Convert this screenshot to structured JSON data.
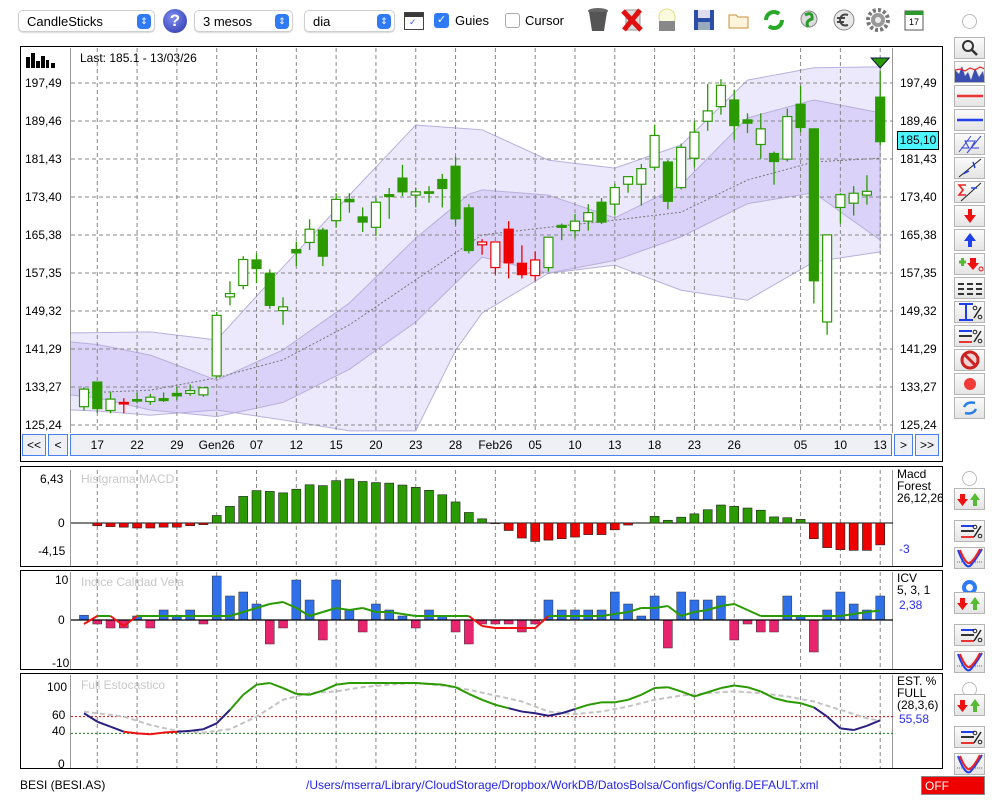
{
  "toolbar": {
    "chart_type": "CandleSticks",
    "period": "3 mesos",
    "interval": "dia",
    "guides_label": "Guies",
    "guides_checked": true,
    "cursor_label": "Cursor",
    "cursor_checked": false,
    "help": "?",
    "calendar_day": "17"
  },
  "main": {
    "last_label": "Last: 185.1 - 13/03/26",
    "last_price": "185,10",
    "nav": {
      "first": "<<",
      "prev": "<",
      "next": ">",
      "last": ">>"
    }
  },
  "panels": {
    "macd": {
      "title": "Histgrama MACD",
      "legend": [
        "Macd",
        "Forest",
        "26,12,26"
      ],
      "value": "-3"
    },
    "icv": {
      "title": "Indice Calidad Vela",
      "legend": [
        "ICV",
        "5, 3, 1"
      ],
      "value": "2,38"
    },
    "stoch": {
      "title": "Full Estocastico",
      "legend": [
        "EST. %",
        "FULL",
        "(28,3,6)"
      ],
      "value": "55,58"
    }
  },
  "status": {
    "symbol": "BESI (BESI.AS)",
    "path": "/Users/mserra/Library/CloudStorage/Dropbox/WorkDB/DatosBolsa/Configs/Config.DEFAULT.xml",
    "toggle": "OFF"
  },
  "colors": {
    "up": "#2a9a00",
    "red": "#ee0000",
    "band": "#c9bff5",
    "macd_pos": "#2a9a00",
    "macd_neg": "#ee0000",
    "icv_pos": "#2f6fe8",
    "icv_neg": "#e8246e",
    "last_bg": "#4df5ff",
    "path": "#2424e8"
  },
  "chart_data": [
    {
      "type": "candlestick",
      "title": "CandleSticks",
      "ylim": [
        125.24,
        197.49
      ],
      "yticks": [
        {
          "v": 197.49,
          "l": "197,49"
        },
        {
          "v": 189.46,
          "l": "189,46"
        },
        {
          "v": 181.43,
          "l": "181,43"
        },
        {
          "v": 173.4,
          "l": "173,40"
        },
        {
          "v": 165.38,
          "l": "165,38"
        },
        {
          "v": 157.35,
          "l": "157,35"
        },
        {
          "v": 149.32,
          "l": "149,32"
        },
        {
          "v": 141.29,
          "l": "141,29"
        },
        {
          "v": 133.27,
          "l": "133,27"
        },
        {
          "v": 125.24,
          "l": "125,24"
        }
      ],
      "xticks": [
        {
          "i": 1,
          "l": "17"
        },
        {
          "i": 4,
          "l": "22"
        },
        {
          "i": 7,
          "l": "29"
        },
        {
          "i": 10,
          "l": "Gen26"
        },
        {
          "i": 13,
          "l": "07"
        },
        {
          "i": 16,
          "l": "12"
        },
        {
          "i": 19,
          "l": "15"
        },
        {
          "i": 22,
          "l": "20"
        },
        {
          "i": 25,
          "l": "23"
        },
        {
          "i": 28,
          "l": "28"
        },
        {
          "i": 31,
          "l": "Feb26"
        },
        {
          "i": 34,
          "l": "05"
        },
        {
          "i": 37,
          "l": "10"
        },
        {
          "i": 40,
          "l": "13"
        },
        {
          "i": 43,
          "l": "18"
        },
        {
          "i": 46,
          "l": "23"
        },
        {
          "i": 49,
          "l": "26"
        },
        {
          "i": 54,
          "l": "05"
        },
        {
          "i": 57,
          "l": "10"
        },
        {
          "i": 60,
          "l": "13"
        }
      ],
      "ohlc": [
        [
          129.1,
          133.2,
          128.3,
          132.8
        ],
        [
          134.3,
          134.3,
          127.8,
          128.7
        ],
        [
          128.3,
          132.3,
          127.7,
          130.7
        ],
        [
          130.0,
          130.9,
          127.7,
          130.0
        ],
        [
          130.6,
          132.1,
          129.8,
          130.6
        ],
        [
          130.2,
          131.8,
          129.5,
          131.1
        ],
        [
          130.8,
          132.1,
          130.1,
          130.4
        ],
        [
          131.9,
          133.3,
          130.5,
          131.4
        ],
        [
          131.9,
          133.8,
          131.4,
          132.5
        ],
        [
          131.6,
          133.1,
          131.2,
          133.1
        ],
        [
          135.6,
          149.1,
          135.2,
          148.4
        ],
        [
          152.3,
          155.6,
          150.5,
          153.0
        ],
        [
          154.7,
          160.9,
          153.9,
          160.2
        ],
        [
          160.1,
          161.5,
          155.2,
          158.3
        ],
        [
          157.3,
          158.1,
          149.8,
          150.5
        ],
        [
          149.4,
          152.2,
          146.4,
          150.2
        ],
        [
          162.3,
          164.0,
          158.8,
          161.6
        ],
        [
          163.8,
          168.7,
          162.2,
          166.6
        ],
        [
          166.4,
          166.9,
          158.8,
          160.9
        ],
        [
          168.4,
          174.2,
          166.9,
          172.9
        ],
        [
          172.9,
          174.2,
          170.1,
          172.4
        ],
        [
          169.2,
          171.2,
          166.0,
          168.1
        ],
        [
          167.0,
          173.3,
          165.2,
          172.3
        ],
        [
          173.9,
          175.3,
          168.8,
          173.5
        ],
        [
          177.4,
          180.2,
          173.6,
          174.5
        ],
        [
          173.8,
          175.4,
          171.2,
          174.5
        ],
        [
          174.5,
          175.7,
          172.2,
          174.5
        ],
        [
          177.1,
          178.3,
          171.2,
          175.2
        ],
        [
          179.9,
          181.9,
          167.4,
          168.8
        ],
        [
          171.1,
          171.9,
          161.5,
          162.1
        ],
        [
          163.3,
          164.5,
          161.2,
          163.9
        ],
        [
          158.5,
          163.9,
          157.0,
          163.9
        ],
        [
          166.6,
          168.3,
          156.2,
          159.5
        ],
        [
          159.4,
          163.2,
          156.2,
          157.0
        ],
        [
          156.8,
          161.9,
          155.7,
          160.1
        ],
        [
          158.5,
          164.9,
          157.6,
          164.9
        ],
        [
          167.4,
          167.8,
          164.3,
          167.0
        ],
        [
          166.3,
          169.8,
          164.7,
          168.3
        ],
        [
          168.3,
          171.9,
          166.3,
          170.1
        ],
        [
          172.3,
          173.2,
          167.7,
          168.1
        ],
        [
          171.9,
          176.2,
          169.5,
          175.4
        ],
        [
          176.1,
          177.7,
          174.3,
          177.7
        ],
        [
          176.1,
          180.4,
          171.6,
          179.4
        ],
        [
          179.7,
          188.7,
          179.1,
          186.4
        ],
        [
          180.8,
          181.2,
          170.8,
          172.5
        ],
        [
          175.4,
          184.7,
          175.0,
          183.9
        ],
        [
          181.6,
          189.4,
          179.7,
          187.1
        ],
        [
          189.4,
          197.3,
          187.4,
          191.6
        ],
        [
          192.5,
          198.3,
          190.8,
          197.0
        ],
        [
          193.9,
          196.1,
          185.5,
          188.5
        ],
        [
          189.7,
          191.1,
          186.9,
          189.0
        ],
        [
          184.5,
          191.1,
          181.5,
          187.8
        ],
        [
          182.6,
          183.0,
          176.0,
          180.9
        ],
        [
          181.4,
          192.1,
          180.9,
          190.4
        ],
        [
          193.0,
          196.9,
          187.1,
          188.1
        ],
        [
          187.8,
          187.8,
          150.9,
          155.7
        ],
        [
          147.0,
          165.4,
          144.3,
          165.4
        ],
        [
          171.2,
          174.2,
          167.8,
          173.9
        ],
        [
          172.1,
          175.7,
          169.5,
          174.2
        ],
        [
          173.8,
          178.0,
          171.8,
          174.6
        ],
        [
          194.5,
          200.0,
          184.3,
          185.1
        ]
      ],
      "red_indices": [
        3,
        30,
        31,
        32,
        33,
        34
      ],
      "bands": {
        "outer_upper": [
          [
            0,
            144.7
          ],
          [
            5,
            144.9
          ],
          [
            10,
            143.2
          ],
          [
            15,
            158.6
          ],
          [
            20,
            173.8
          ],
          [
            25,
            188.6
          ],
          [
            30,
            187.6
          ],
          [
            35,
            181.2
          ],
          [
            40,
            179.5
          ],
          [
            45,
            184.4
          ],
          [
            50,
            198.1
          ],
          [
            55,
            200.7
          ],
          [
            60,
            200.9
          ]
        ],
        "outer_lower": [
          [
            0,
            128.4
          ],
          [
            5,
            127.3
          ],
          [
            10,
            128.4
          ],
          [
            15,
            126.3
          ],
          [
            20,
            124
          ],
          [
            25,
            124
          ],
          [
            28,
            141
          ],
          [
            30,
            148.9
          ],
          [
            35,
            157.3
          ],
          [
            40,
            159.0
          ],
          [
            45,
            153.7
          ],
          [
            50,
            151.6
          ],
          [
            55,
            159.7
          ],
          [
            60,
            161.8
          ]
        ],
        "inner_upper": [
          [
            0,
            142.8
          ],
          [
            5,
            140.0
          ],
          [
            10,
            134.7
          ],
          [
            15,
            141.1
          ],
          [
            20,
            151.0
          ],
          [
            25,
            164.7
          ],
          [
            29,
            174.0
          ],
          [
            30,
            174.9
          ],
          [
            35,
            173.8
          ],
          [
            40,
            169.0
          ],
          [
            45,
            175.9
          ],
          [
            50,
            190.1
          ],
          [
            55,
            193.9
          ],
          [
            60,
            191.2
          ]
        ],
        "inner_lower": [
          [
            0,
            131.6
          ],
          [
            5,
            128.4
          ],
          [
            10,
            127.0
          ],
          [
            15,
            130
          ],
          [
            20,
            137
          ],
          [
            25,
            147
          ],
          [
            30,
            160.7
          ],
          [
            35,
            157.3
          ],
          [
            40,
            160
          ],
          [
            45,
            165
          ],
          [
            50,
            172
          ],
          [
            55,
            174.3
          ],
          [
            60,
            164.3
          ]
        ],
        "ma": [
          [
            0,
            132.0
          ],
          [
            5,
            132.6
          ],
          [
            10,
            135.2
          ],
          [
            15,
            139.0
          ],
          [
            20,
            146.4
          ],
          [
            25,
            155.9
          ],
          [
            30,
            165.4
          ],
          [
            35,
            167.0
          ],
          [
            40,
            168.5
          ],
          [
            45,
            170.2
          ],
          [
            50,
            177.0
          ],
          [
            55,
            180.8
          ],
          [
            60,
            181.6
          ]
        ]
      }
    },
    {
      "type": "bar",
      "title": "Histgrama MACD",
      "ylim": [
        -4.15,
        6.43
      ],
      "yticks": [
        {
          "v": 6.43,
          "l": "6,43"
        },
        {
          "v": 0,
          "l": "0"
        },
        {
          "v": -4.15,
          "l": "-4,15"
        }
      ],
      "values": [
        null,
        -0.4,
        -0.53,
        -0.61,
        -0.73,
        -0.73,
        -0.61,
        -0.61,
        -0.4,
        -0.24,
        1.1,
        2.43,
        3.89,
        4.74,
        4.62,
        4.41,
        4.94,
        5.59,
        5.47,
        6.19,
        6.43,
        6.07,
        5.91,
        5.83,
        5.55,
        5.22,
        4.78,
        4.13,
        3.08,
        1.54,
        0.61,
        -0.1,
        -1.1,
        -2.2,
        -2.7,
        -2.5,
        -2.3,
        -2.06,
        -1.7,
        -1.7,
        -1.0,
        -0.3,
        0,
        0.97,
        0.4,
        0.85,
        1.34,
        1.94,
        2.63,
        2.43,
        2.19,
        1.87,
        0.89,
        0.77,
        0.53,
        -2.3,
        -3.6,
        -3.9,
        -4.0,
        -4.0,
        -3.2
      ]
    },
    {
      "type": "bar+line",
      "title": "Indice Calidad Vela",
      "ylim": [
        -10,
        10
      ],
      "yticks": [
        {
          "v": 10,
          "l": "10"
        },
        {
          "v": 0,
          "l": "0"
        },
        {
          "v": -10,
          "l": "-10"
        }
      ],
      "values": [
        1.2,
        -1,
        -2,
        -2,
        1,
        -2,
        2.5,
        1,
        2.5,
        -1,
        11,
        6,
        7,
        4,
        -6,
        -2,
        10,
        5,
        -5,
        10,
        2.5,
        -3,
        4,
        2.5,
        1,
        -2,
        2.5,
        1,
        -3,
        -6,
        -1,
        -1,
        -1,
        -3,
        -1,
        5,
        2.5,
        2.5,
        2.5,
        2.5,
        7,
        4,
        1,
        6,
        -7,
        7,
        5,
        5,
        6,
        -5,
        -1,
        -3,
        -3,
        6,
        1,
        -8,
        2.5,
        7,
        4,
        2.5,
        6
      ],
      "signal": [
        -1,
        1,
        1,
        -1.5,
        1,
        1,
        1,
        1,
        1,
        1,
        1,
        1,
        2,
        3,
        4,
        4.5,
        3,
        1,
        2,
        3,
        2.5,
        3,
        2,
        2,
        1.5,
        1,
        1,
        1,
        1,
        1,
        -1.5,
        -2,
        -2,
        -2,
        -2,
        1,
        1,
        1,
        1,
        1,
        1.5,
        2,
        3,
        3,
        3.5,
        1,
        2,
        2.5,
        3.5,
        4,
        2.5,
        1,
        1,
        1,
        1,
        1,
        1,
        1,
        1.5,
        2,
        2.38
      ]
    },
    {
      "type": "line",
      "title": "Full Estocastico",
      "ylim": [
        0,
        100
      ],
      "yticks": [
        {
          "v": 100,
          "l": "100"
        },
        {
          "v": 60,
          "l": "60"
        },
        {
          "v": 40,
          "l": "40"
        },
        {
          "v": 0,
          "l": "0"
        }
      ],
      "levels": [
        60,
        40
      ],
      "k": [
        64,
        54,
        48,
        42,
        40,
        39,
        41,
        42,
        43,
        45,
        52,
        68,
        86,
        98,
        100,
        94,
        87,
        86,
        91,
        98,
        100,
        100,
        100,
        100,
        100,
        100,
        99,
        98,
        95,
        87,
        80,
        74,
        70,
        66,
        64,
        61,
        64,
        69,
        74,
        77,
        77,
        80,
        86,
        94,
        95,
        90,
        84,
        89,
        94,
        97,
        95,
        90,
        82,
        78,
        76,
        71,
        60,
        46,
        44,
        49,
        55.58
      ],
      "d": [
        [
          0,
          66
        ],
        [
          3,
          60
        ],
        [
          5,
          50
        ],
        [
          7,
          43
        ],
        [
          9,
          41
        ],
        [
          11,
          45
        ],
        [
          13,
          60
        ],
        [
          15,
          80
        ],
        [
          17,
          88
        ],
        [
          19,
          90
        ],
        [
          21,
          95
        ],
        [
          23,
          98
        ],
        [
          25,
          100
        ],
        [
          27,
          97
        ],
        [
          29,
          92
        ],
        [
          31,
          85
        ],
        [
          33,
          78
        ],
        [
          35,
          66
        ],
        [
          37,
          63
        ],
        [
          39,
          66
        ],
        [
          41,
          72
        ],
        [
          43,
          80
        ],
        [
          45,
          85
        ],
        [
          47,
          88
        ],
        [
          49,
          90
        ],
        [
          51,
          88
        ],
        [
          53,
          84
        ],
        [
          55,
          78
        ],
        [
          57,
          68
        ],
        [
          59,
          58
        ],
        [
          60,
          55
        ]
      ]
    }
  ]
}
